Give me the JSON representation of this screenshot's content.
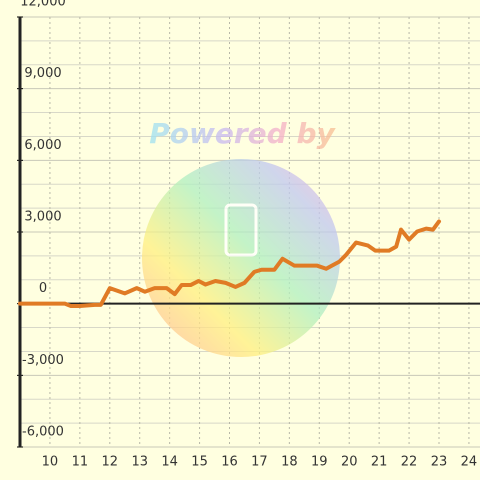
{
  "chart_data": {
    "type": "line",
    "watermark": "Powered by",
    "x": [
      9,
      9.5,
      10,
      10.5,
      10.7,
      11,
      11.5,
      11.7,
      12,
      12.5,
      12.9,
      13.17,
      13.5,
      13.9,
      14.17,
      14.4,
      14.7,
      14.97,
      15.2,
      15.53,
      15.87,
      16.2,
      16.5,
      16.83,
      17.07,
      17.5,
      17.77,
      18.17,
      18.5,
      18.93,
      19.23,
      19.67,
      19.9,
      20.23,
      20.63,
      20.87,
      21.33,
      21.57,
      21.73,
      22,
      22.27,
      22.57,
      22.8,
      23
    ],
    "series": [
      {
        "color": "#e07b25",
        "values": [
          0,
          0,
          0,
          0,
          -100,
          -100,
          -50,
          -50,
          650,
          430,
          650,
          500,
          650,
          650,
          400,
          780,
          780,
          950,
          800,
          950,
          870,
          700,
          870,
          1330,
          1420,
          1420,
          1880,
          1590,
          1590,
          1590,
          1460,
          1760,
          2050,
          2560,
          2430,
          2220,
          2220,
          2390,
          3100,
          2680,
          3020,
          3140,
          3100,
          3440
        ]
      }
    ],
    "xlim": [
      9,
      24.37
    ],
    "ylim": [
      -6000,
      12000
    ],
    "xticks": [
      10,
      11,
      12,
      13,
      14,
      15,
      16,
      17,
      18,
      19,
      20,
      21,
      22,
      23,
      24
    ],
    "yticks": [
      {
        "value": -6000,
        "label": "-6,000"
      },
      {
        "value": -3000,
        "label": "-3,000"
      },
      {
        "value": 0,
        "label": "0"
      },
      {
        "value": 3000,
        "label": "3,000"
      },
      {
        "value": 6000,
        "label": "6,000"
      },
      {
        "value": 9000,
        "label": "9,000"
      },
      {
        "value": 12000,
        "label": "12,000"
      }
    ],
    "y_minor_ticks": [
      -5000,
      -4000,
      -2000,
      -1000,
      1000,
      2000,
      4000,
      5000,
      7000,
      8000,
      10000,
      11000
    ],
    "grid": true
  }
}
